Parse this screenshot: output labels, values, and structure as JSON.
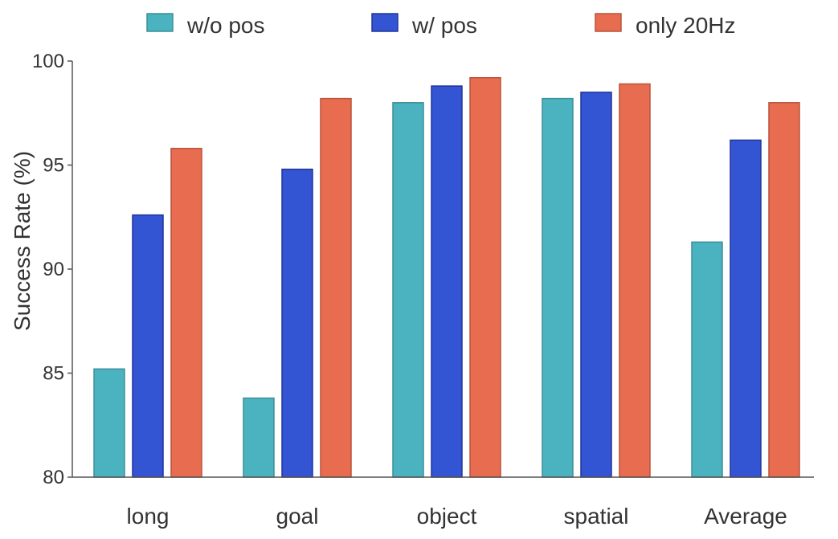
{
  "chart_data": {
    "type": "bar",
    "categories": [
      "long",
      "goal",
      "object",
      "spatial",
      "Average"
    ],
    "series": [
      {
        "name": "w/o pos",
        "color": "#4bb2bf",
        "stroke": "#3a8f9a",
        "values": [
          85.2,
          83.8,
          98.0,
          98.2,
          91.3
        ]
      },
      {
        "name": "w/ pos",
        "color": "#3355d3",
        "stroke": "#22359a",
        "values": [
          92.6,
          94.8,
          98.8,
          98.5,
          96.2
        ]
      },
      {
        "name": "only 20Hz",
        "color": "#e86c4f",
        "stroke": "#b9533c",
        "values": [
          95.8,
          98.2,
          99.2,
          98.9,
          98.0
        ]
      }
    ],
    "ylabel": "Success Rate (%)",
    "xlabel": "",
    "ylim": [
      80,
      100
    ],
    "yticks": [
      80,
      85,
      90,
      95,
      100
    ],
    "grid": false,
    "legend_position": "top"
  }
}
